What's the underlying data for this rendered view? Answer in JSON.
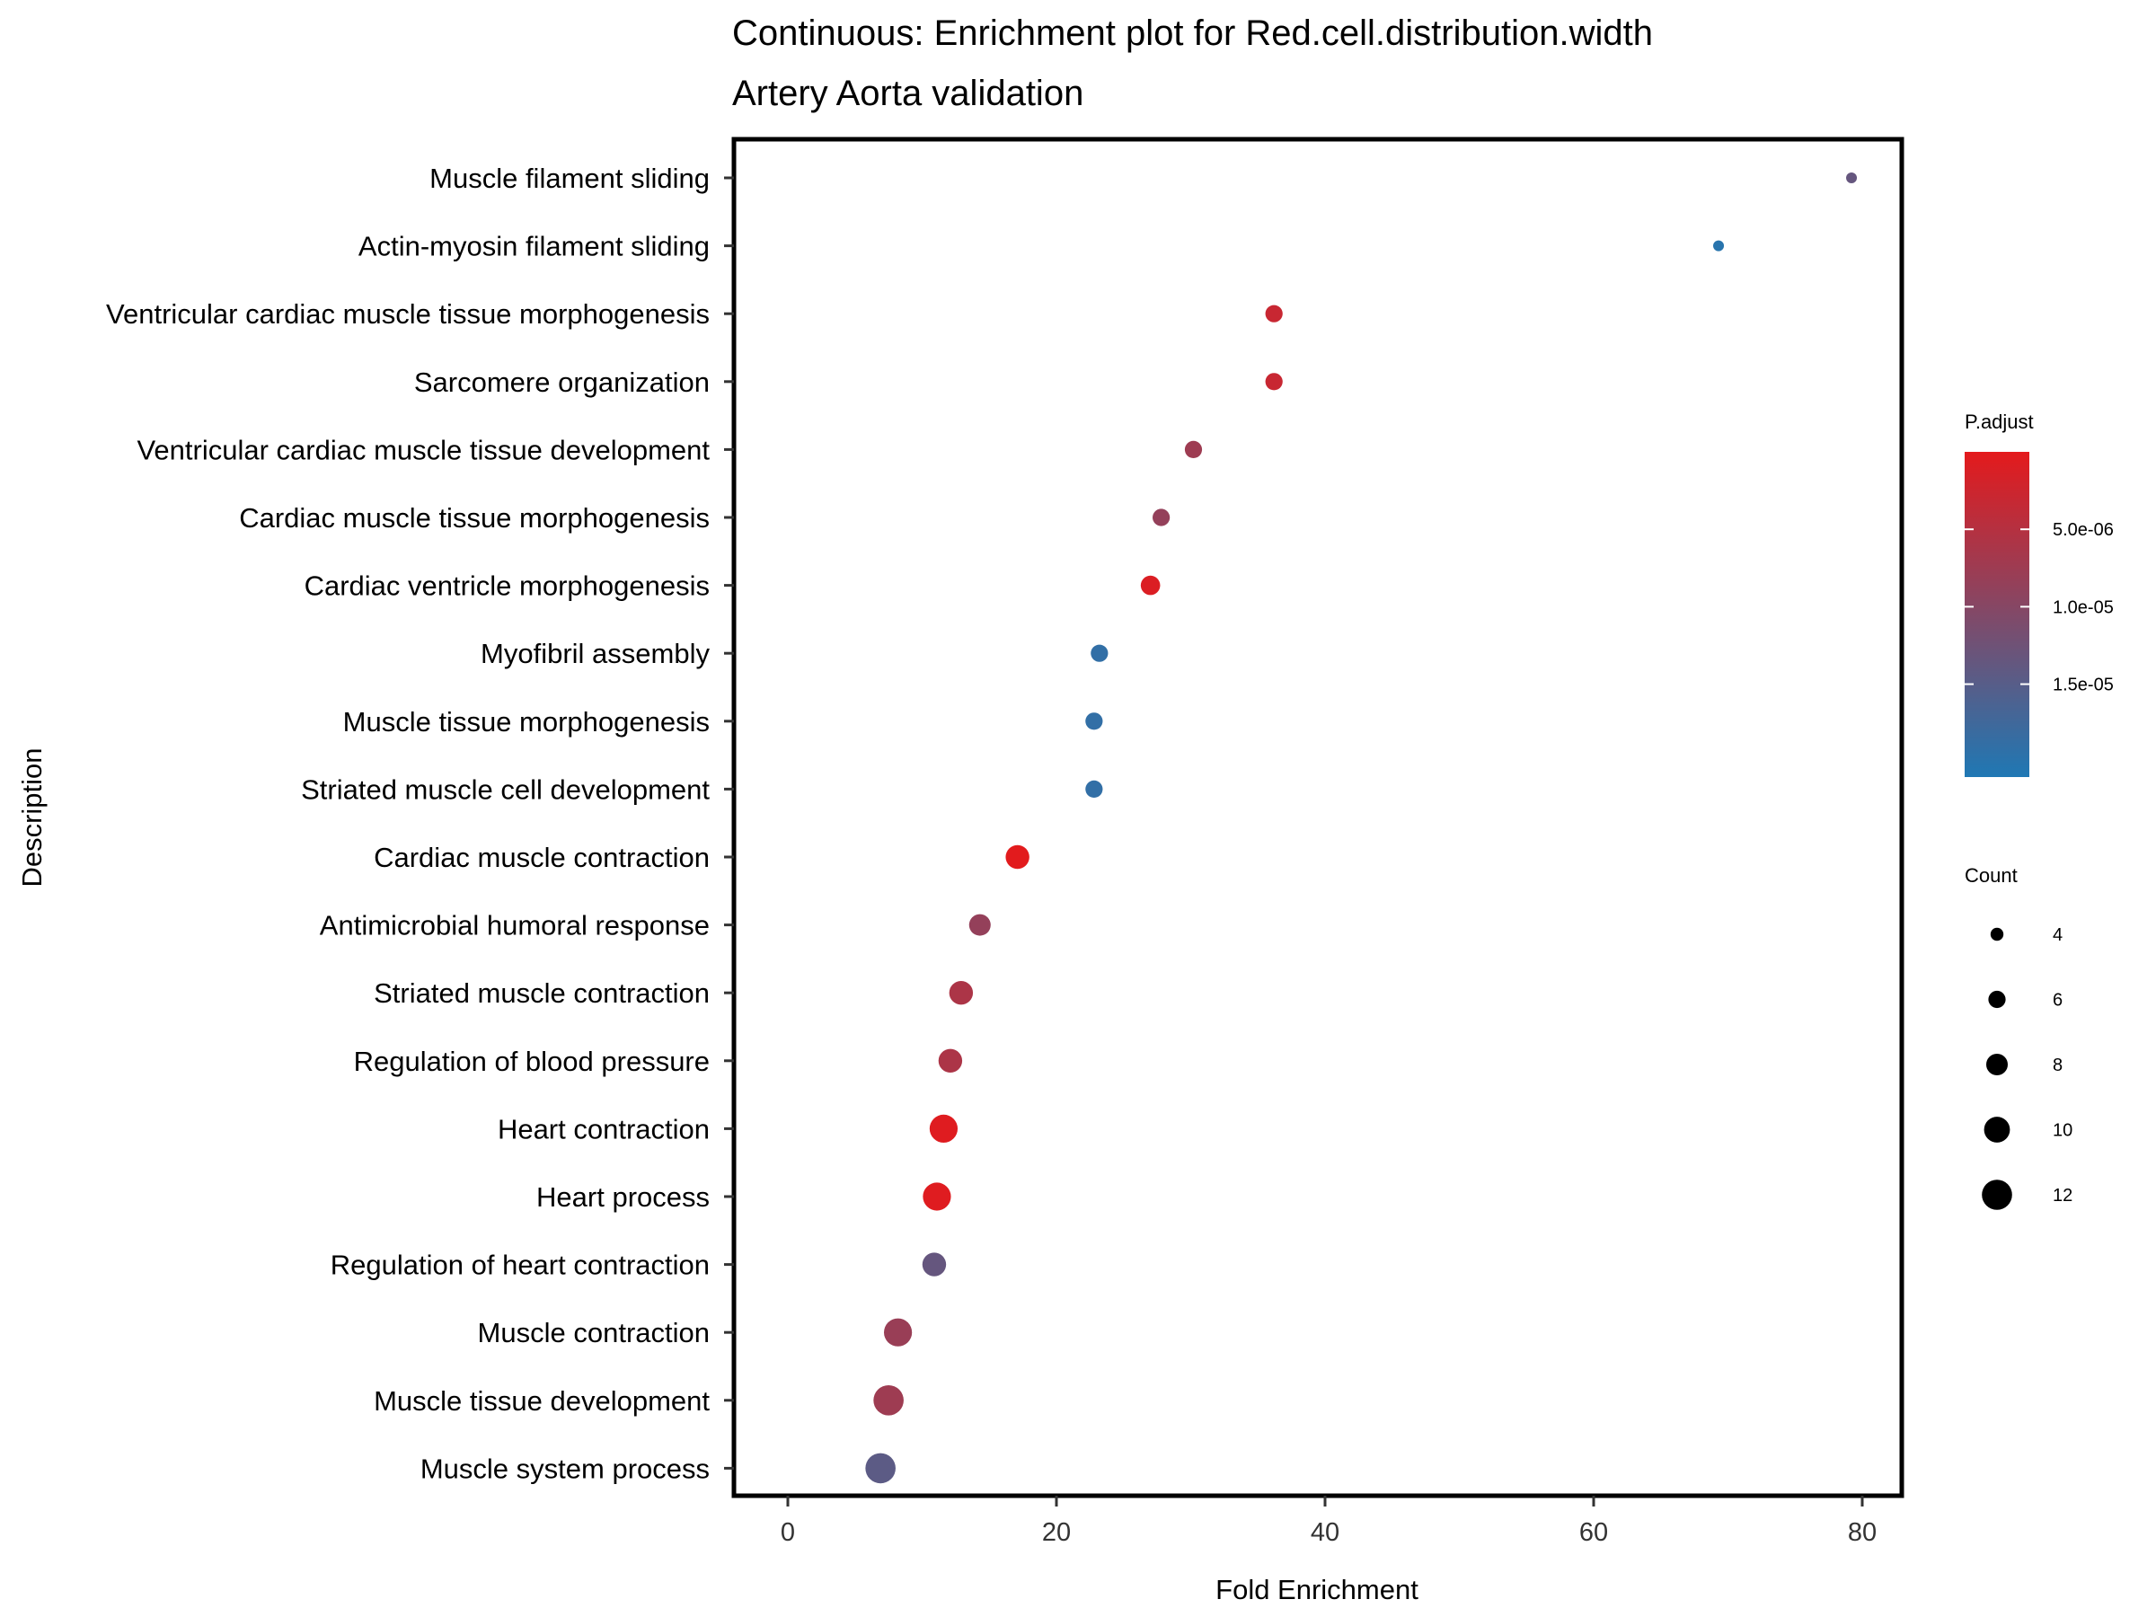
{
  "chart_data": {
    "type": "scatter",
    "title": "Continuous: Enrichment plot for Red.cell.distribution.width",
    "subtitle": "Artery Aorta validation",
    "xlabel": "Fold Enrichment",
    "ylabel": "Description",
    "xlim": [
      -4,
      83
    ],
    "xticks": [
      0,
      20,
      40,
      60,
      80
    ],
    "grid": false,
    "points": [
      {
        "label": "Muscle filament sliding",
        "x": 79.2,
        "count": 3,
        "p_adjust": 1.35e-05
      },
      {
        "label": "Actin-myosin filament sliding",
        "x": 69.3,
        "count": 3,
        "p_adjust": 2e-05
      },
      {
        "label": "Ventricular cardiac muscle tissue morphogenesis",
        "x": 36.2,
        "count": 6,
        "p_adjust": 3e-06
      },
      {
        "label": "Sarcomere organization",
        "x": 36.2,
        "count": 6,
        "p_adjust": 3e-06
      },
      {
        "label": "Ventricular cardiac muscle tissue development",
        "x": 30.2,
        "count": 6,
        "p_adjust": 7.5e-06
      },
      {
        "label": "Cardiac muscle tissue morphogenesis",
        "x": 27.8,
        "count": 6,
        "p_adjust": 8.5e-06
      },
      {
        "label": "Cardiac ventricle morphogenesis",
        "x": 27.0,
        "count": 7,
        "p_adjust": 1e-06
      },
      {
        "label": "Myofibril assembly",
        "x": 23.2,
        "count": 6,
        "p_adjust": 1.9e-05
      },
      {
        "label": "Muscle tissue morphogenesis",
        "x": 22.8,
        "count": 6,
        "p_adjust": 1.9e-05
      },
      {
        "label": "Striated muscle cell development",
        "x": 22.8,
        "count": 6,
        "p_adjust": 1.9e-05
      },
      {
        "label": "Cardiac muscle contraction",
        "x": 17.1,
        "count": 9,
        "p_adjust": 2e-07
      },
      {
        "label": "Antimicrobial humoral response",
        "x": 14.3,
        "count": 8,
        "p_adjust": 8.5e-06
      },
      {
        "label": "Striated muscle contraction",
        "x": 12.9,
        "count": 9,
        "p_adjust": 6e-06
      },
      {
        "label": "Regulation of blood pressure",
        "x": 12.1,
        "count": 9,
        "p_adjust": 6e-06
      },
      {
        "label": "Heart contraction",
        "x": 11.6,
        "count": 11,
        "p_adjust": 5e-07
      },
      {
        "label": "Heart process",
        "x": 11.1,
        "count": 11,
        "p_adjust": 5e-07
      },
      {
        "label": "Regulation of heart contraction",
        "x": 10.9,
        "count": 9,
        "p_adjust": 1.35e-05
      },
      {
        "label": "Muscle contraction",
        "x": 8.2,
        "count": 11,
        "p_adjust": 8e-06
      },
      {
        "label": "Muscle tissue development",
        "x": 7.5,
        "count": 12,
        "p_adjust": 7.5e-06
      },
      {
        "label": "Muscle system process",
        "x": 6.9,
        "count": 12,
        "p_adjust": 1.45e-05
      }
    ],
    "color_legend": {
      "title": "P.adjust",
      "breaks": [
        5e-06,
        1e-05,
        1.5e-05
      ],
      "labels": [
        "5.0e-06",
        "1.0e-05",
        "1.5e-05"
      ],
      "range": [
        0,
        2.1e-05
      ],
      "low_color": "#e41a1c",
      "high_color": "#1f78b4"
    },
    "size_legend": {
      "title": "Count",
      "values": [
        4,
        6,
        8,
        10,
        12
      ],
      "labels": [
        "4",
        "6",
        "8",
        "10",
        "12"
      ]
    }
  }
}
